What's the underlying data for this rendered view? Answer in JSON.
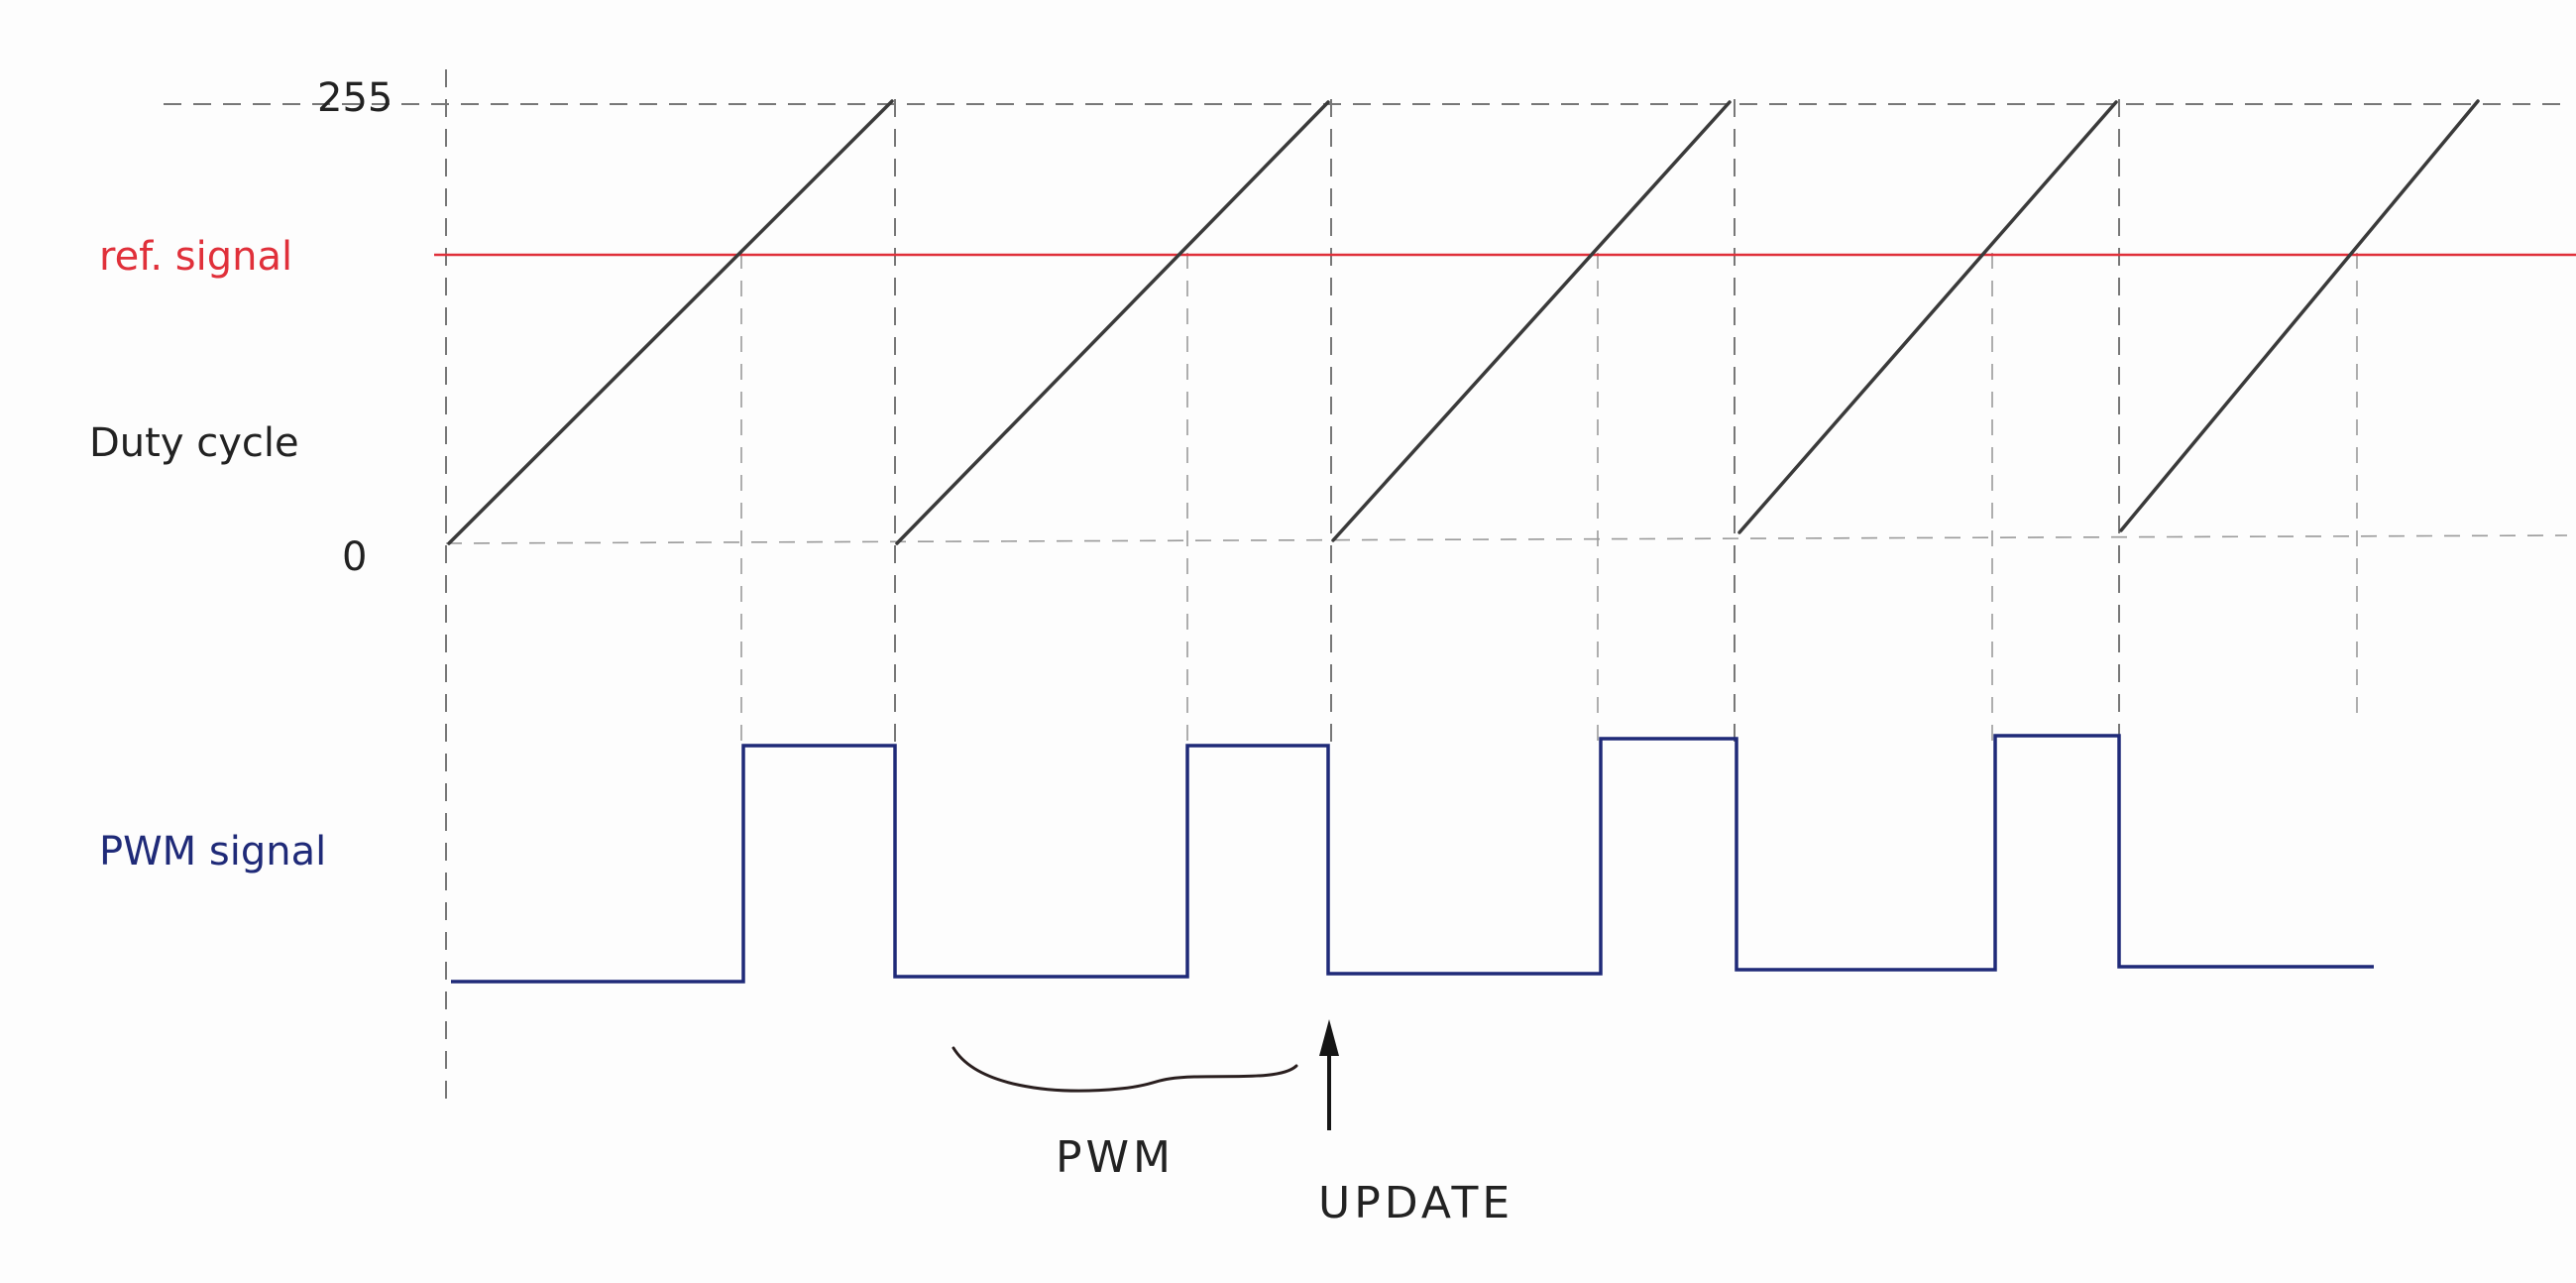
{
  "labels": {
    "y_max": "255",
    "y_min": "0",
    "ref_signal": "ref. signal",
    "duty_cycle": "Duty cycle",
    "pwm_signal": "PWM signal",
    "pwm_period": "PWM",
    "update": "UPDATE"
  },
  "colors": {
    "ref_signal": "#e0303a",
    "pwm_signal": "#1f2a78",
    "sawtooth": "#3a3a3a",
    "guides": "#777777",
    "labels_dark": "#222222"
  },
  "sawtooth": {
    "min": 0,
    "max": 255,
    "periods": 5
  },
  "reference_level": 168,
  "pwm": {
    "states": "low while counter < reference, high while counter >= reference",
    "high_pulses": 4
  }
}
